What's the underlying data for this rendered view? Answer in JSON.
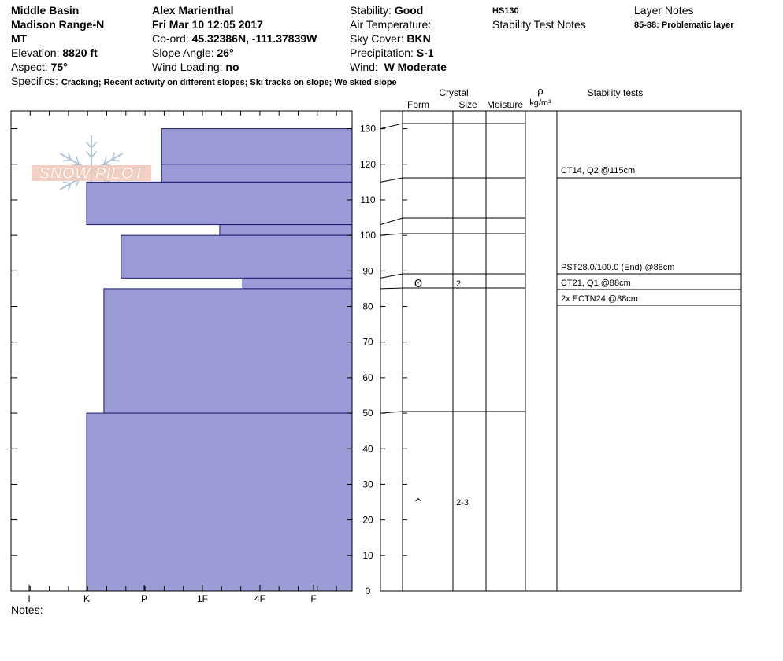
{
  "header": {
    "location": "Middle Basin",
    "range": "Madison Range-N",
    "state": "MT",
    "elevation_label": "Elevation:",
    "elevation_value": "8820 ft",
    "aspect_label": "Aspect:",
    "aspect_value": "75°",
    "observer": "Alex Marienthal",
    "datetime": "Fri Mar 10 12:05 2017",
    "coord_label": "Co-ord:",
    "coord_value": "45.32386N, -111.37839W",
    "slope_label": "Slope Angle:",
    "slope_value": "26°",
    "wind_loading_label": "Wind Loading:",
    "wind_loading_value": "no",
    "stability_label": "Stability:",
    "stability_value": "Good",
    "air_temp_label": "Air Temperature:",
    "sky_label": "Sky Cover:",
    "sky_value": "BKN",
    "precip_label": "Precipitation:",
    "precip_value": "S-1",
    "wind_label": "Wind:",
    "wind_value": "W Moderate",
    "hs": "HS130",
    "stability_test_notes": "Stability Test Notes",
    "layer_notes_title": "Layer Notes",
    "layer_note": "85-88: Problematic layer",
    "specifics_label": "Specifics:",
    "specifics_value": "Cracking; Recent activity on different slopes; Ski tracks on slope; We skied slope",
    "notes_label": "Notes:"
  },
  "logo_text": "SNOW PILOT",
  "columns": {
    "crystal": "Crystal",
    "form": "Form",
    "size": "Size",
    "moisture": "Moisture",
    "rho": "ρ",
    "density_unit": "kg/m³",
    "stability_tests": "Stability tests"
  },
  "chart_data": {
    "type": "area",
    "y_axis": {
      "range": [
        0,
        130
      ],
      "ticks": [
        0,
        10,
        20,
        30,
        40,
        50,
        60,
        70,
        80,
        90,
        100,
        110,
        120,
        130
      ],
      "unit": "cm"
    },
    "x_axis": {
      "hardness_scale": [
        "I",
        "K",
        "P",
        "1F",
        "4F",
        "F"
      ],
      "direction": "right-to-left"
    },
    "hardness_profile": [
      {
        "bottom": 120,
        "top": 130,
        "hardness": "4F"
      },
      {
        "bottom": 103,
        "top": 115,
        "hardness": "1F-"
      },
      {
        "bottom": 100,
        "top": 103,
        "hardness": "4F+"
      },
      {
        "bottom": 88,
        "top": 100,
        "hardness": "1F+"
      },
      {
        "bottom": 85,
        "top": 88,
        "hardness": "F+"
      },
      {
        "bottom": 50,
        "top": 85,
        "hardness": "1F"
      },
      {
        "bottom": 0,
        "top": 50,
        "hardness": "1F-"
      }
    ],
    "hardness_values": [
      {
        "bottom": 120,
        "top": 130,
        "index": 3.3
      },
      {
        "bottom": 115,
        "top": 120,
        "index": 3.3
      },
      {
        "bottom": 103,
        "top": 115,
        "index": 2.0
      },
      {
        "bottom": 100,
        "top": 103,
        "index": 4.3
      },
      {
        "bottom": 88,
        "top": 100,
        "index": 2.6
      },
      {
        "bottom": 85,
        "top": 88,
        "index": 4.7
      },
      {
        "bottom": 50,
        "top": 85,
        "index": 2.3
      },
      {
        "bottom": 0,
        "top": 50,
        "index": 2.0
      }
    ],
    "layer_boundaries": [
      130,
      115,
      103,
      100,
      88,
      85,
      50,
      0
    ],
    "crystal_layers": [
      {
        "depth_mid": 86.5,
        "form": "ʘ",
        "size": "2"
      },
      {
        "depth_mid": 25,
        "form": "^",
        "size": "2-3"
      }
    ],
    "stability_tests": [
      {
        "text": "CT14, Q2 @115cm",
        "depth": 115
      },
      {
        "text": "PST28.0/100.0 (End) @88cm",
        "depth": 88
      },
      {
        "text": "CT21, Q1 @88cm",
        "depth": 88
      },
      {
        "text": "2x ECTN24 @88cm",
        "depth": 88
      }
    ]
  },
  "colors": {
    "profile_fill": "#9b9bd8",
    "profile_stroke": "#1a1a6e",
    "logo": "#f0c8b8",
    "snowflake": "#b0c4d8"
  }
}
